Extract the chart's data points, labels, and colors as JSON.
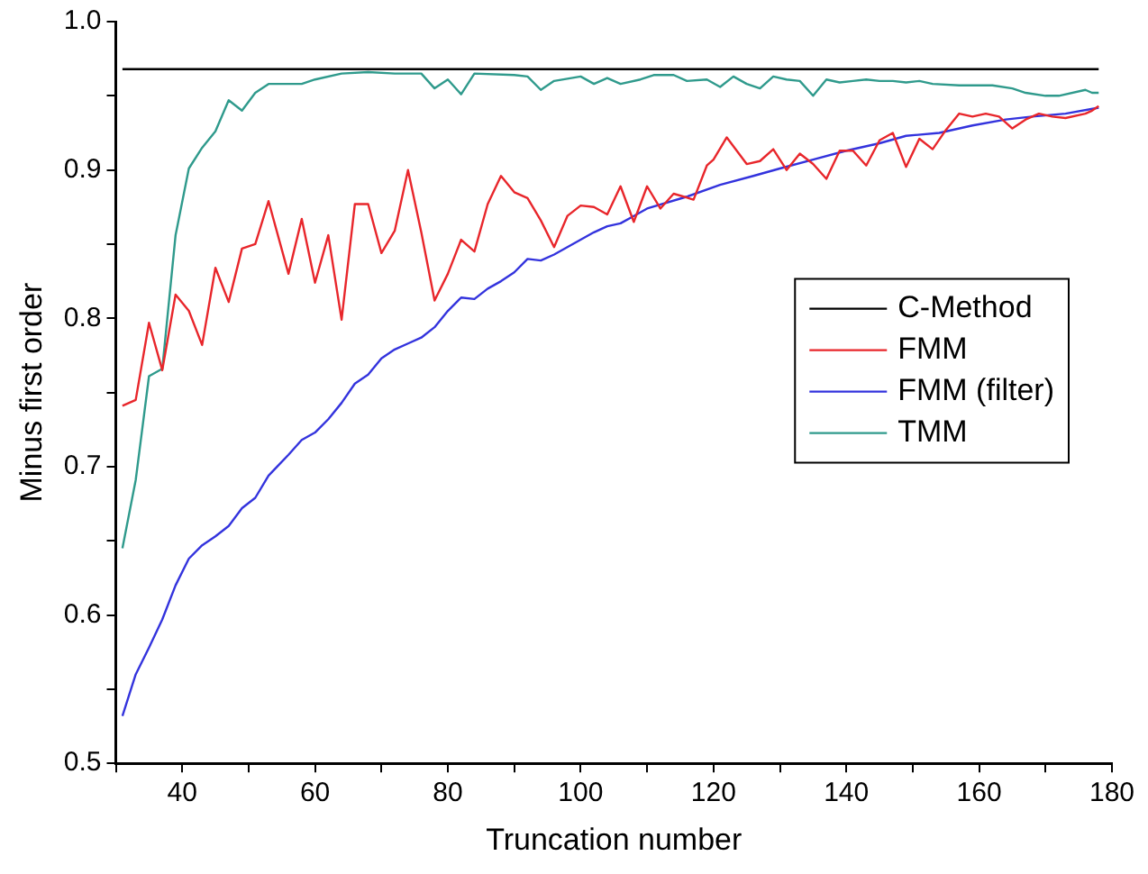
{
  "chart_data": {
    "type": "line",
    "xlabel": "Truncation number",
    "ylabel": "Minus first order",
    "xlim": [
      30,
      180
    ],
    "xticks": [
      {
        "value": 30,
        "label": null
      },
      40,
      {
        "value": 50,
        "label": null
      },
      60,
      {
        "value": 70,
        "label": null
      },
      80,
      {
        "value": 90,
        "label": null
      },
      100,
      {
        "value": 110,
        "label": null
      },
      120,
      {
        "value": 130,
        "label": null
      },
      140,
      {
        "value": 150,
        "label": null
      },
      160,
      {
        "value": 170,
        "label": null
      },
      180
    ],
    "ylim": [
      0.5,
      1.0
    ],
    "yticks": [
      0.5,
      {
        "value": 0.55,
        "label": null
      },
      0.6,
      {
        "value": 0.65,
        "label": null
      },
      0.7,
      {
        "value": 0.75,
        "label": null
      },
      0.8,
      {
        "value": 0.85,
        "label": null
      },
      0.9,
      {
        "value": 0.95,
        "label": null
      },
      {
        "value": 1.0,
        "label": "1.0"
      }
    ],
    "grid": false,
    "legend": "right",
    "marker": "none",
    "line_style": "solid",
    "series": [
      {
        "name": "C-Method",
        "color": "#000000",
        "x": [
          31,
          178
        ],
        "values": [
          0.968,
          0.968
        ]
      },
      {
        "name": "FMM",
        "color": "#e8262b",
        "x": [
          31,
          33,
          35,
          37,
          39,
          41,
          43,
          45,
          47,
          49,
          51,
          53,
          56,
          58,
          60,
          62,
          64,
          66,
          68,
          70,
          72,
          74,
          76,
          78,
          80,
          82,
          84,
          86,
          88,
          90,
          92,
          94,
          96,
          98,
          100,
          102,
          104,
          106,
          108,
          110,
          112,
          114,
          117,
          119,
          120,
          122,
          125,
          127,
          129,
          131,
          133,
          135,
          137,
          139,
          141,
          143,
          145,
          147,
          149,
          151,
          153,
          155,
          157,
          159,
          161,
          163,
          165,
          167,
          169,
          171,
          173,
          176,
          177,
          178
        ],
        "values": [
          0.741,
          0.745,
          0.797,
          0.765,
          0.816,
          0.805,
          0.782,
          0.834,
          0.811,
          0.847,
          0.85,
          0.879,
          0.83,
          0.867,
          0.824,
          0.856,
          0.799,
          0.877,
          0.877,
          0.844,
          0.859,
          0.9,
          0.858,
          0.812,
          0.83,
          0.853,
          0.845,
          0.877,
          0.896,
          0.885,
          0.881,
          0.866,
          0.848,
          0.869,
          0.876,
          0.875,
          0.87,
          0.889,
          0.865,
          0.889,
          0.874,
          0.884,
          0.88,
          0.903,
          0.907,
          0.922,
          0.904,
          0.906,
          0.914,
          0.9,
          0.911,
          0.904,
          0.894,
          0.913,
          0.913,
          0.903,
          0.92,
          0.925,
          0.902,
          0.921,
          0.914,
          0.927,
          0.938,
          0.936,
          0.938,
          0.936,
          0.928,
          0.934,
          0.938,
          0.936,
          0.935,
          0.938,
          0.94,
          0.943
        ]
      },
      {
        "name": "FMM (filter)",
        "color": "#3333dd",
        "x": [
          31,
          33,
          35,
          37,
          39,
          41,
          43,
          45,
          47,
          49,
          51,
          53,
          56,
          58,
          60,
          62,
          64,
          66,
          68,
          70,
          72,
          74,
          76,
          78,
          80,
          82,
          84,
          86,
          88,
          90,
          92,
          94,
          96,
          98,
          100,
          102,
          104,
          106,
          108,
          110,
          116,
          121,
          126,
          130,
          135,
          140,
          145,
          149,
          154,
          159,
          164,
          168,
          173,
          178
        ],
        "values": [
          0.532,
          0.56,
          0.578,
          0.597,
          0.62,
          0.638,
          0.647,
          0.653,
          0.66,
          0.672,
          0.679,
          0.694,
          0.708,
          0.718,
          0.723,
          0.732,
          0.743,
          0.756,
          0.762,
          0.773,
          0.779,
          0.783,
          0.787,
          0.794,
          0.805,
          0.814,
          0.813,
          0.82,
          0.825,
          0.831,
          0.84,
          0.839,
          0.843,
          0.848,
          0.853,
          0.858,
          0.862,
          0.864,
          0.869,
          0.874,
          0.882,
          0.89,
          0.896,
          0.901,
          0.907,
          0.913,
          0.918,
          0.923,
          0.925,
          0.93,
          0.934,
          0.936,
          0.938,
          0.942
        ]
      },
      {
        "name": "TMM",
        "color": "#2f9a8c",
        "x": [
          31,
          33,
          35,
          37,
          39,
          41,
          43,
          45,
          47,
          49,
          51,
          53,
          58,
          60,
          64,
          68,
          72,
          76,
          78,
          80,
          82,
          84,
          90,
          92,
          94,
          96,
          100,
          102,
          104,
          106,
          109,
          111,
          114,
          116,
          119,
          121,
          123,
          125,
          127,
          129,
          131,
          133,
          135,
          137,
          139,
          141,
          143,
          145,
          147,
          149,
          151,
          153,
          157,
          162,
          165,
          167,
          170,
          172,
          176,
          177,
          178
        ],
        "values": [
          0.645,
          0.691,
          0.761,
          0.766,
          0.856,
          0.901,
          0.915,
          0.926,
          0.947,
          0.94,
          0.952,
          0.958,
          0.958,
          0.961,
          0.965,
          0.966,
          0.965,
          0.965,
          0.955,
          0.961,
          0.951,
          0.965,
          0.964,
          0.963,
          0.954,
          0.96,
          0.963,
          0.958,
          0.962,
          0.958,
          0.961,
          0.964,
          0.964,
          0.96,
          0.961,
          0.956,
          0.963,
          0.958,
          0.955,
          0.963,
          0.961,
          0.96,
          0.95,
          0.961,
          0.959,
          0.96,
          0.961,
          0.96,
          0.96,
          0.959,
          0.96,
          0.958,
          0.957,
          0.957,
          0.955,
          0.952,
          0.95,
          0.95,
          0.954,
          0.952,
          0.952
        ]
      }
    ]
  }
}
